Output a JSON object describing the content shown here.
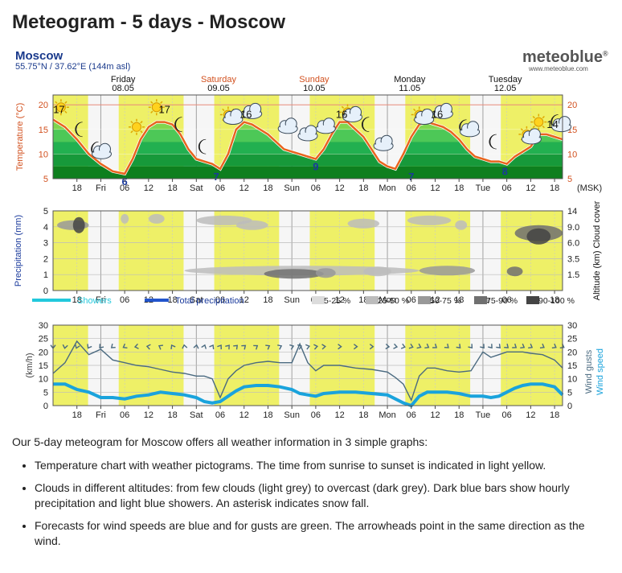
{
  "title": "Meteogram - 5 days - Moscow",
  "location": {
    "name": "Moscow",
    "coords": "55.75°N / 37.62°E (144m asl)"
  },
  "logo": {
    "brand": "meteoblue",
    "mark": "®",
    "url": "www.meteoblue.com"
  },
  "days": [
    {
      "name": "Friday",
      "date": "08.05",
      "color": "#111111"
    },
    {
      "name": "Saturday",
      "date": "09.05",
      "color": "#d2501e"
    },
    {
      "name": "Sunday",
      "date": "10.05",
      "color": "#d2501e"
    },
    {
      "name": "Monday",
      "date": "11.05",
      "color": "#111111"
    },
    {
      "name": "Tuesday",
      "date": "12.05",
      "color": "#111111"
    }
  ],
  "time_axis": {
    "unit_label": "(MSK)",
    "ticks": [
      {
        "h": 18,
        "label": "18"
      },
      {
        "h": 24,
        "label": "Fri"
      },
      {
        "h": 30,
        "label": "06"
      },
      {
        "h": 36,
        "label": "12"
      },
      {
        "h": 42,
        "label": "18"
      },
      {
        "h": 48,
        "label": "Sat"
      },
      {
        "h": 54,
        "label": "06"
      },
      {
        "h": 60,
        "label": "12"
      },
      {
        "h": 66,
        "label": "18"
      },
      {
        "h": 72,
        "label": "Sun"
      },
      {
        "h": 78,
        "label": "06"
      },
      {
        "h": 84,
        "label": "12"
      },
      {
        "h": 90,
        "label": "18"
      },
      {
        "h": 96,
        "label": "Mon"
      },
      {
        "h": 102,
        "label": "06"
      },
      {
        "h": 108,
        "label": "12"
      },
      {
        "h": 114,
        "label": "18"
      },
      {
        "h": 120,
        "label": "Tue"
      },
      {
        "h": 126,
        "label": "06"
      },
      {
        "h": 132,
        "label": "12"
      },
      {
        "h": 138,
        "label": "18"
      }
    ],
    "daylight_hours": [
      [
        12,
        20.8
      ],
      [
        28.5,
        44.8
      ],
      [
        52.5,
        68.8
      ],
      [
        76.5,
        92.8
      ],
      [
        100.5,
        116.8
      ],
      [
        124.5,
        140
      ]
    ]
  },
  "chart_data": [
    {
      "type": "area",
      "ylabel": "Temperature (°C)",
      "ylim": [
        5,
        22
      ],
      "yticks": [
        5,
        10,
        15,
        20
      ],
      "highlight_line": 20,
      "x": [
        12,
        15,
        18,
        21,
        24,
        27,
        30,
        32,
        34,
        36,
        38,
        40,
        42,
        44,
        46,
        48,
        50,
        52,
        54,
        56,
        58,
        60,
        62,
        64,
        66,
        68,
        70,
        72,
        74,
        76,
        78,
        80,
        82,
        84,
        86,
        88,
        90,
        92,
        94,
        96,
        98,
        100,
        102,
        104,
        106,
        108,
        110,
        112,
        114,
        116,
        118,
        120,
        122,
        124,
        126,
        128,
        130,
        132,
        134,
        136,
        138,
        140
      ],
      "temperature": [
        17,
        15.5,
        13,
        10,
        8,
        6.5,
        6,
        9,
        13,
        15.5,
        16.5,
        16.5,
        16,
        14,
        11,
        9,
        8.5,
        8,
        7,
        10,
        15,
        16.5,
        16,
        15,
        14,
        12.5,
        11,
        10.5,
        10,
        9.5,
        9,
        11,
        14,
        16.5,
        16.5,
        15,
        13.5,
        11,
        8.5,
        7.5,
        7,
        10,
        13.5,
        16,
        16.5,
        16,
        15.5,
        14.5,
        13,
        11,
        9.5,
        9,
        8.5,
        8.5,
        8,
        9.5,
        10.5,
        11.5,
        14,
        14,
        13.5,
        13
      ],
      "labels": [
        {
          "h": 13.5,
          "v": 17,
          "text": "17"
        },
        {
          "h": 30,
          "v": 6,
          "text": "6",
          "kind": "min"
        },
        {
          "h": 40,
          "v": 17,
          "text": "17"
        },
        {
          "h": 53,
          "v": 7,
          "text": "7",
          "kind": "min"
        },
        {
          "h": 60.5,
          "v": 16,
          "text": "16"
        },
        {
          "h": 78,
          "v": 9,
          "text": "9",
          "kind": "min"
        },
        {
          "h": 84.5,
          "v": 16,
          "text": "16"
        },
        {
          "h": 102,
          "v": 7,
          "text": "7",
          "kind": "min"
        },
        {
          "h": 108.5,
          "v": 16,
          "text": "16"
        },
        {
          "h": 125.5,
          "v": 8,
          "text": "8",
          "kind": "min"
        },
        {
          "h": 137.5,
          "v": 14,
          "text": "14"
        }
      ],
      "pictograms": [
        {
          "h": 14,
          "v": 19.5,
          "icon": "sun-icon"
        },
        {
          "h": 19,
          "v": 15,
          "icon": "moon-icon"
        },
        {
          "h": 23,
          "v": 11,
          "icon": "moon-cloud-icon"
        },
        {
          "h": 33,
          "v": 15.5,
          "icon": "sun-icon"
        },
        {
          "h": 38,
          "v": 19.5,
          "icon": "sun-icon"
        },
        {
          "h": 44,
          "v": 16,
          "icon": "moon-icon"
        },
        {
          "h": 50,
          "v": 11.5,
          "icon": "moon-icon"
        },
        {
          "h": 56,
          "v": 18,
          "icon": "sun-cloud-icon"
        },
        {
          "h": 62,
          "v": 18.5,
          "icon": "cloud-icon"
        },
        {
          "h": 71,
          "v": 15.5,
          "icon": "cloud-icon"
        },
        {
          "h": 76,
          "v": 14,
          "icon": "cloud-icon"
        },
        {
          "h": 80.5,
          "v": 15.5,
          "icon": "cloud-icon"
        },
        {
          "h": 86,
          "v": 18.5,
          "icon": "sun-cloud-icon"
        },
        {
          "h": 91,
          "v": 16,
          "icon": "moon-icon"
        },
        {
          "h": 95,
          "v": 12,
          "icon": "cloud-icon"
        },
        {
          "h": 104,
          "v": 18,
          "icon": "sun-cloud-icon"
        },
        {
          "h": 110,
          "v": 18.5,
          "icon": "cloud-icon"
        },
        {
          "h": 115.5,
          "v": 15.5,
          "icon": "moon-cloud-icon"
        },
        {
          "h": 123,
          "v": 12.5,
          "icon": "moon-icon"
        },
        {
          "h": 131,
          "v": 14,
          "icon": "sun-cloud-icon"
        },
        {
          "h": 134,
          "v": 16.5,
          "icon": "sun-icon"
        },
        {
          "h": 138.5,
          "v": 16.5,
          "icon": "moon-cloud-icon"
        }
      ],
      "colors": {
        "line": "#e8641e",
        "bands": [
          "#0e7f1e",
          "#17993a",
          "#22b050",
          "#4dc857",
          "#7fd64f"
        ]
      }
    },
    {
      "type": "heatmap",
      "ylabel": "Precipitation (mm)",
      "ylabel_right": "Altitude (km) Cloud cover",
      "ylim": [
        0,
        5
      ],
      "yticks": [
        0,
        1,
        2,
        3,
        4,
        5
      ],
      "yticks_right": [
        "1.5",
        "3.5",
        "6.0",
        "9.0",
        "14"
      ],
      "clouds": [
        {
          "h1": 13,
          "h2": 21,
          "level": 4.1,
          "cover": 0.55
        },
        {
          "h1": 17,
          "h2": 20,
          "level": 4.1,
          "cover": 0.8
        },
        {
          "h1": 29,
          "h2": 31,
          "level": 4.5,
          "cover": 0.3
        },
        {
          "h1": 36,
          "h2": 40,
          "level": 4.5,
          "cover": 0.2
        },
        {
          "h1": 48,
          "h2": 62,
          "level": 4.4,
          "cover": 0.3
        },
        {
          "h1": 58,
          "h2": 66,
          "level": 4.1,
          "cover": 0.25
        },
        {
          "h1": 45,
          "h2": 104,
          "level": 1.25,
          "cover": 0.3
        },
        {
          "h1": 65,
          "h2": 80,
          "level": 1.05,
          "cover": 0.65
        },
        {
          "h1": 78,
          "h2": 83,
          "level": 1.1,
          "cover": 0.55
        },
        {
          "h1": 86,
          "h2": 94,
          "level": 4.2,
          "cover": 0.3
        },
        {
          "h1": 90,
          "h2": 97,
          "level": 1.2,
          "cover": 0.35
        },
        {
          "h1": 101,
          "h2": 112,
          "level": 4.4,
          "cover": 0.25
        },
        {
          "h1": 104,
          "h2": 118,
          "level": 1.25,
          "cover": 0.45
        },
        {
          "h1": 113,
          "h2": 116,
          "level": 4.1,
          "cover": 0.3
        },
        {
          "h1": 126,
          "h2": 130,
          "level": 1.2,
          "cover": 0.7
        },
        {
          "h1": 128,
          "h2": 140,
          "level": 3.6,
          "cover": 0.75
        },
        {
          "h1": 131,
          "h2": 137,
          "level": 3.4,
          "cover": 0.9
        }
      ],
      "legend": {
        "showers": "Showers",
        "total": "Total precipitation",
        "cover_bins": [
          "5-25 %",
          "25-50 %",
          "50-75 %",
          "75-90 %",
          "90-100 %"
        ],
        "colors": {
          "showers": "#22c8dc",
          "total": "#2255cc",
          "bins": [
            "#dcdcdc",
            "#bcbcbc",
            "#999999",
            "#707070",
            "#444444"
          ]
        }
      }
    },
    {
      "type": "line",
      "ylabel": "(km/h)",
      "ylabel_right_gusts": "Wind gusts",
      "ylabel_right_speed": "Wind speed",
      "ylim": [
        0,
        30
      ],
      "yticks": [
        0,
        5,
        10,
        15,
        20,
        25,
        30
      ],
      "x": [
        12,
        15,
        18,
        21,
        24,
        27,
        30,
        33,
        36,
        39,
        42,
        45,
        48,
        50,
        52,
        54,
        56,
        58,
        60,
        63,
        66,
        69,
        72,
        74,
        76,
        78,
        80,
        84,
        88,
        92,
        96,
        98,
        100,
        102,
        104,
        106,
        108,
        111,
        114,
        117,
        120,
        122,
        124,
        126,
        128,
        130,
        132,
        135,
        138,
        140
      ],
      "wind_gusts": [
        12,
        16,
        24,
        19,
        21,
        17,
        16,
        15,
        14.5,
        13.5,
        12.5,
        12,
        11,
        11,
        10,
        3,
        10,
        13,
        15,
        16,
        16.5,
        16,
        16,
        23,
        16,
        13,
        15,
        15,
        14,
        13.5,
        12.5,
        10.5,
        8,
        2,
        11,
        14,
        14,
        13,
        12.5,
        13,
        20,
        18,
        19,
        20,
        20,
        20,
        19.5,
        19,
        17,
        14
      ],
      "wind_speed": [
        8,
        8,
        6,
        5,
        3,
        3,
        2.5,
        3.5,
        4,
        5,
        4.5,
        4,
        3,
        1.5,
        1,
        1.5,
        3.5,
        5.5,
        7,
        7.5,
        7.5,
        7,
        6,
        4.5,
        4,
        3.5,
        4.5,
        5,
        5,
        4.5,
        4,
        2.5,
        1,
        0,
        3.5,
        5,
        5,
        5,
        4.5,
        3.5,
        3.5,
        3,
        3.5,
        5,
        6.5,
        7.5,
        8,
        8,
        7,
        4
      ],
      "wind_direction_deg": [
        0,
        10,
        20,
        30,
        40,
        50,
        60,
        80,
        100,
        120,
        150,
        170,
        190,
        200,
        210,
        215,
        220,
        225,
        230,
        235,
        240,
        245,
        250,
        250,
        255,
        260,
        265,
        270,
        270,
        270,
        275,
        280,
        285,
        290,
        295,
        300,
        305,
        310,
        315,
        320,
        320,
        320,
        315,
        310,
        305,
        300,
        300,
        300,
        300,
        300
      ],
      "colors": {
        "gusts": "#4a6a80",
        "speed": "#1aa3dc",
        "arrows": "#4a6a80"
      }
    }
  ],
  "description": {
    "intro": "Our 5-day meteogram for Moscow offers all weather information in 3 simple graphs:",
    "items": [
      "Temperature chart with weather pictograms. The time from sunrise to sunset is indicated in light yellow.",
      "Clouds in different altitudes: from few clouds (light grey) to overcast (dark grey). Dark blue bars show hourly precipitation and light blue showers. An asterisk indicates snow fall.",
      "Forecasts for wind speeds are blue and for gusts are green. The arrowheads point in the same direction as the wind."
    ]
  }
}
